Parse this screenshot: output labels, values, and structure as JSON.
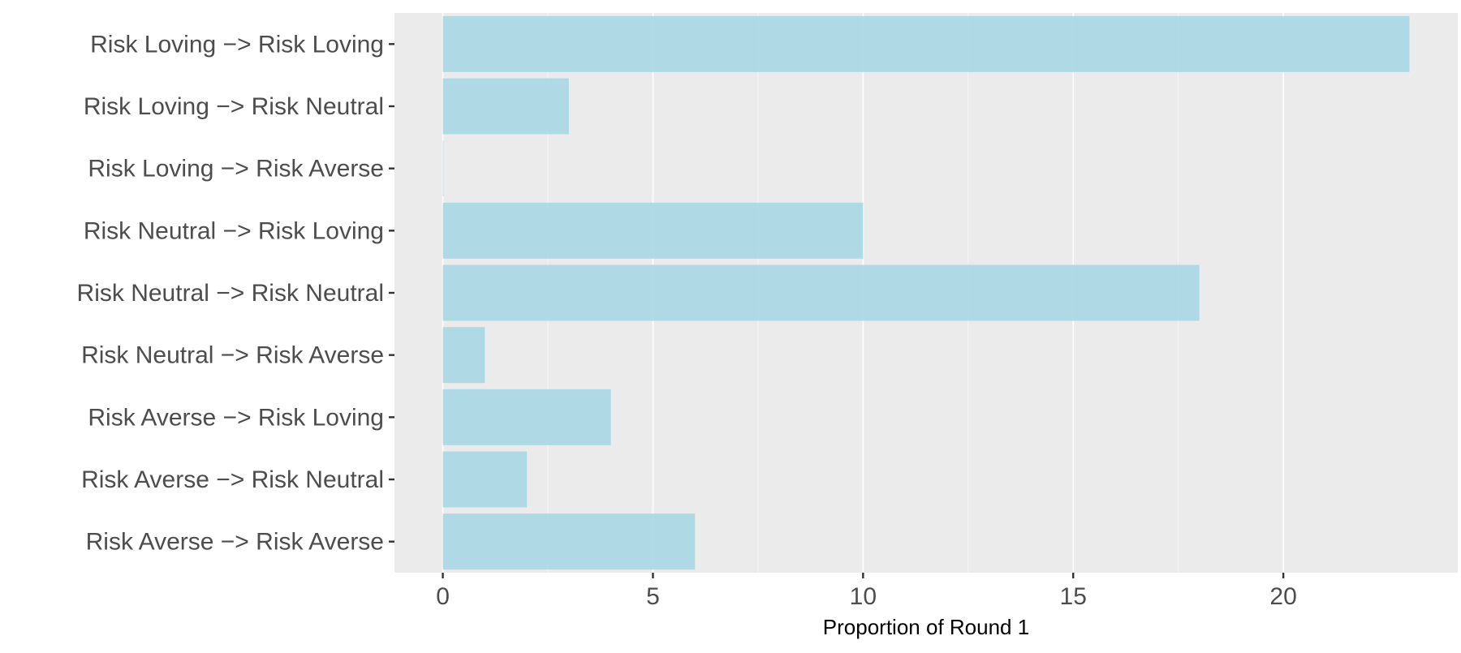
{
  "chart_data": {
    "type": "bar",
    "orientation": "horizontal",
    "categories": [
      "Risk Loving -> Risk Loving",
      "Risk Loving -> Risk Neutral",
      "Risk Loving -> Risk Averse",
      "Risk Neutral -> Risk Loving",
      "Risk Neutral -> Risk Neutral",
      "Risk Neutral -> Risk Averse",
      "Risk Averse -> Risk Loving",
      "Risk Averse -> Risk Neutral",
      "Risk Averse -> Risk Averse"
    ],
    "category_labels": [
      "Risk Loving −> Risk Loving",
      "Risk Loving −> Risk Neutral",
      "Risk Loving −> Risk Averse",
      "Risk Neutral −> Risk Loving",
      "Risk Neutral −> Risk Neutral",
      "Risk Neutral −> Risk Averse",
      "Risk Averse −> Risk Loving",
      "Risk Averse −> Risk Neutral",
      "Risk Averse −> Risk Averse"
    ],
    "values": [
      23,
      3,
      0,
      10,
      18,
      1,
      4,
      2,
      6
    ],
    "title": "",
    "xlabel": "Proportion of Round 1",
    "ylabel": "",
    "xlim": [
      -1.15,
      24.15
    ],
    "xticks": [
      0,
      5,
      10,
      15,
      20
    ],
    "xtick_labels": [
      "0",
      "5",
      "10",
      "15",
      "20"
    ],
    "grid": true,
    "legend": "none",
    "colors": {
      "bar": "#add8e6",
      "panel_background": "#ebebeb",
      "gridline": "#ffffff",
      "tick": "#333333"
    }
  }
}
